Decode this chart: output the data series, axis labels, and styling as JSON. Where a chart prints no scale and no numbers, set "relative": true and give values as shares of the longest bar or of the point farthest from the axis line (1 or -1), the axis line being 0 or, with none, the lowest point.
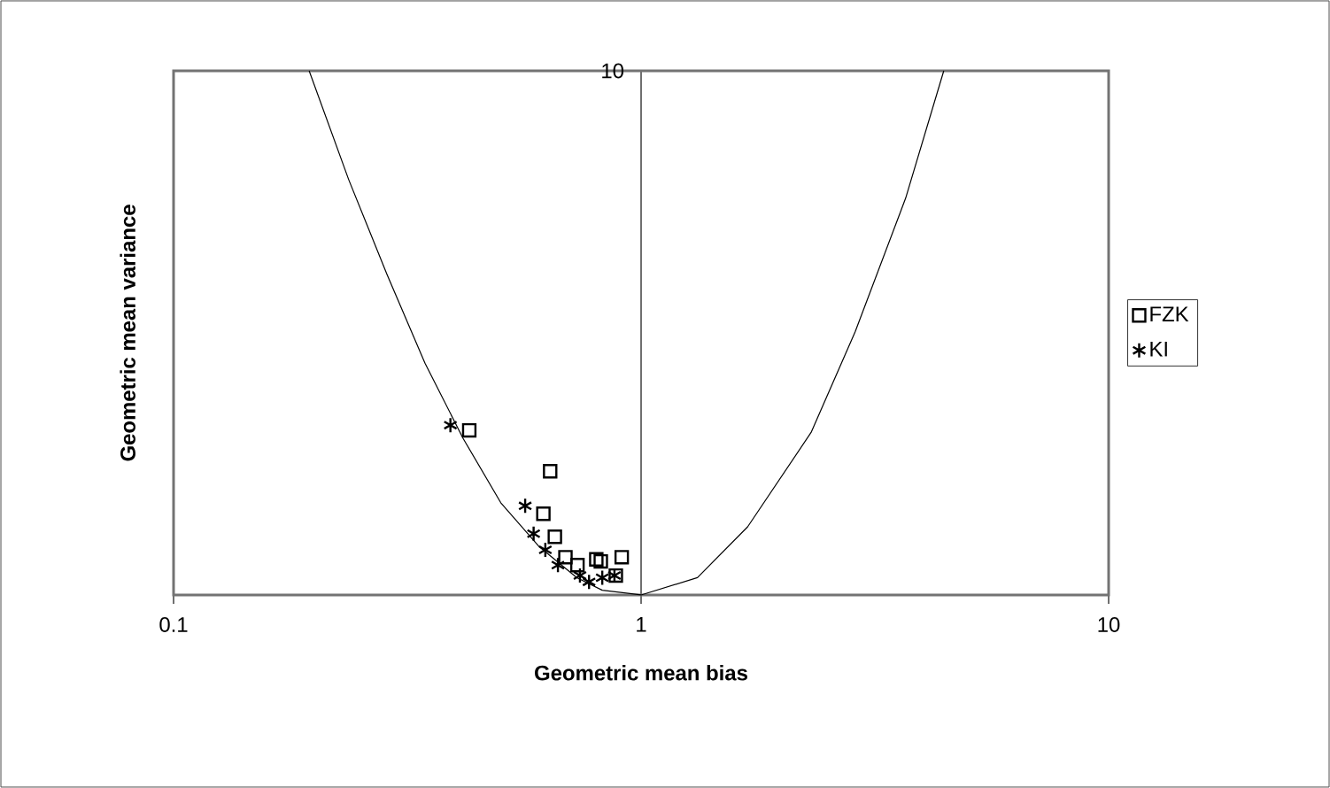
{
  "chart_data": {
    "type": "scatter",
    "xlabel": "Geometric mean bias",
    "ylabel": "Geometric mean variance",
    "log": "x",
    "relative": true,
    "xlim": [
      0.1,
      10
    ],
    "xticks": [
      0.1,
      1,
      10
    ],
    "legend": "right",
    "annotations": [
      "10"
    ],
    "series": [
      {
        "name": "FZK",
        "marker": "square",
        "color": "#000000",
        "x": [
          0.429,
          0.639,
          0.618,
          0.654,
          0.689,
          0.731,
          0.802,
          0.82,
          0.909,
          0.883
        ],
        "values": [
          0.314,
          0.236,
          0.155,
          0.111,
          0.072,
          0.057,
          0.068,
          0.064,
          0.072,
          0.037
        ]
      },
      {
        "name": "KI",
        "marker": "cross",
        "color": "#000000",
        "x": [
          0.391,
          0.565,
          0.589,
          0.624,
          0.664,
          0.74,
          0.774,
          0.826,
          0.877
        ],
        "values": [
          0.324,
          0.17,
          0.117,
          0.086,
          0.057,
          0.037,
          0.025,
          0.033,
          0.037
        ]
      },
      {
        "type": "line",
        "marker": "none",
        "line_style": "solid",
        "color": "#000000",
        "x": [
          0.195,
          0.237,
          0.286,
          0.345,
          0.416,
          0.501,
          0.604,
          0.729,
          0.826,
          1.0,
          1.32,
          1.69,
          2.31,
          2.87,
          3.68,
          4.44
        ],
        "values": [
          1,
          0.792,
          0.612,
          0.442,
          0.299,
          0.176,
          0.093,
          0.033,
          0.009,
          0,
          0.033,
          0.13,
          0.31,
          0.502,
          0.757,
          1
        ]
      }
    ]
  }
}
